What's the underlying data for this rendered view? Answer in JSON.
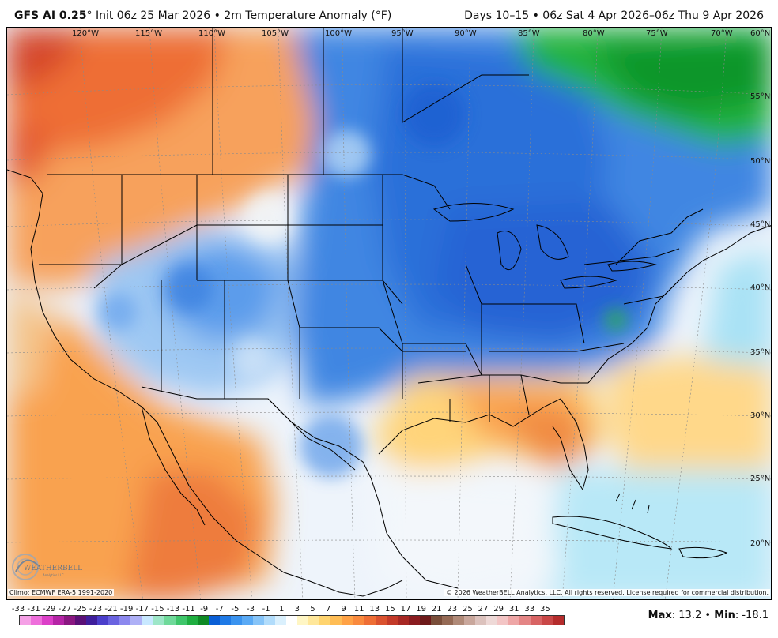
{
  "header": {
    "model": "GFS AI 0.25",
    "degree": "°",
    "init": "Init 06z 25 Mar 2026",
    "bullet": "•",
    "field": "2m Temperature Anomaly (°F)",
    "right": "Days 10–15 • 06z Sat 4 Apr 2026–06z Thu 9 Apr 2026"
  },
  "map": {
    "longitude_labels": [
      "120°W",
      "115°W",
      "110°W",
      "105°W",
      "100°W",
      "95°W",
      "90°W",
      "85°W",
      "80°W",
      "75°W",
      "70°W"
    ],
    "latitude_labels": [
      "60°N",
      "55°N",
      "50°N",
      "45°N",
      "40°N",
      "35°N",
      "30°N",
      "25°N",
      "20°N"
    ],
    "climo": "Climo: ECMWF ERA-5 1991-2020",
    "copyright": "© 2026 WeatherBELL Analytics, LLC. All rights reserved. License required for commercial distribution.",
    "logo_text": "WEATHERBELL",
    "logo_sub": "Analytics LLC"
  },
  "legend": {
    "labels": [
      "-33",
      "-31",
      "-29",
      "-27",
      "-25",
      "-23",
      "-21",
      "-19",
      "-17",
      "-15",
      "-13",
      "-11",
      "-9",
      "-7",
      "-5",
      "-3",
      "-1",
      "1",
      "3",
      "5",
      "7",
      "9",
      "11",
      "13",
      "15",
      "17",
      "19",
      "21",
      "23",
      "25",
      "27",
      "29",
      "31",
      "33",
      "35"
    ],
    "colors": [
      "#f5a0e6",
      "#ee6edb",
      "#dc3fc8",
      "#b524a6",
      "#8a1781",
      "#5b1077",
      "#3f1e9c",
      "#4b3fcb",
      "#6a63e0",
      "#8c88ee",
      "#aeb0f6",
      "#c8e8ff",
      "#9de6c8",
      "#6fd99a",
      "#3fc66b",
      "#1fae40",
      "#0f8a25",
      "#0a5fd6",
      "#1f7ae6",
      "#3a93ef",
      "#5aaaf5",
      "#86c4f8",
      "#b1dcfb",
      "#daf0fd",
      "#ffffff",
      "#fff6c4",
      "#ffe79a",
      "#ffd46f",
      "#ffbd55",
      "#ffa246",
      "#f98a3e",
      "#ee6e35",
      "#da522f",
      "#c33a29",
      "#a72824",
      "#8a1c20",
      "#6e1a1a",
      "#7a4e3a",
      "#956a55",
      "#b08a78",
      "#c9a79c",
      "#dcc2bd",
      "#eed9d7",
      "#f3c5c5",
      "#eea6a6",
      "#e48585",
      "#d86464",
      "#c94747",
      "#b52c2c"
    ]
  },
  "stats": {
    "max_label": "Max",
    "max_value": "13.2",
    "sep": "•",
    "min_label": "Min",
    "min_value": "-18.1"
  }
}
